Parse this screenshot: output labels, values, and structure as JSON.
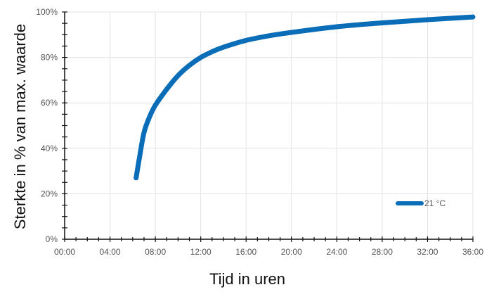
{
  "chart_data": {
    "type": "line",
    "title": "",
    "xlabel": "Tijd in uren",
    "ylabel": "Sterkte in % van max. waarde",
    "xlim": [
      0,
      36
    ],
    "ylim": [
      0,
      100
    ],
    "x_ticks": [
      {
        "value": 0,
        "label": "00:00"
      },
      {
        "value": 4,
        "label": "04:00"
      },
      {
        "value": 8,
        "label": "08:00"
      },
      {
        "value": 12,
        "label": "12:00"
      },
      {
        "value": 16,
        "label": "16:00"
      },
      {
        "value": 20,
        "label": "20:00"
      },
      {
        "value": 24,
        "label": "24:00"
      },
      {
        "value": 28,
        "label": "28:00"
      },
      {
        "value": 32,
        "label": "32:00"
      },
      {
        "value": 36,
        "label": "36:00"
      }
    ],
    "y_ticks": [
      {
        "value": 0,
        "label": "0%"
      },
      {
        "value": 20,
        "label": "20%"
      },
      {
        "value": 40,
        "label": "40%"
      },
      {
        "value": 60,
        "label": "60%"
      },
      {
        "value": 80,
        "label": "80%"
      },
      {
        "value": 100,
        "label": "100%"
      }
    ],
    "grid": true,
    "legend_position": "bottom-right",
    "series": [
      {
        "name": "21 °C",
        "color": "#0a6db8",
        "points": [
          {
            "x": 6.3,
            "y": 27
          },
          {
            "x": 6.6,
            "y": 36
          },
          {
            "x": 7.0,
            "y": 47
          },
          {
            "x": 7.5,
            "y": 54
          },
          {
            "x": 8.0,
            "y": 59
          },
          {
            "x": 9.0,
            "y": 66
          },
          {
            "x": 10.0,
            "y": 72
          },
          {
            "x": 11.0,
            "y": 76.5
          },
          {
            "x": 12.0,
            "y": 80
          },
          {
            "x": 13.0,
            "y": 82.5
          },
          {
            "x": 14.0,
            "y": 84.5
          },
          {
            "x": 16.0,
            "y": 87.5
          },
          {
            "x": 18.0,
            "y": 89.5
          },
          {
            "x": 20.0,
            "y": 91
          },
          {
            "x": 24.0,
            "y": 93.5
          },
          {
            "x": 28.0,
            "y": 95.2
          },
          {
            "x": 32.0,
            "y": 96.6
          },
          {
            "x": 36.0,
            "y": 97.8
          }
        ]
      }
    ]
  }
}
